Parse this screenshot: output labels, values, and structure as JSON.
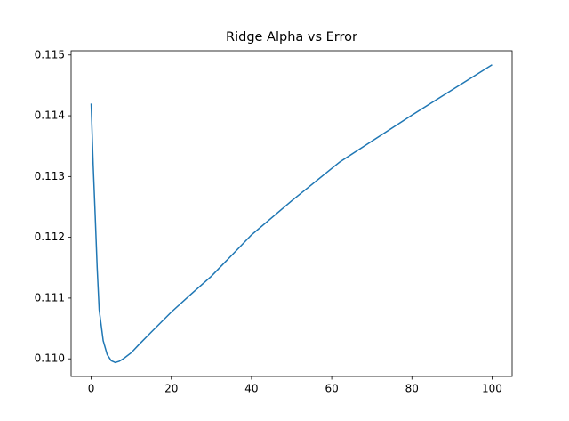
{
  "chart_data": {
    "type": "line",
    "title": "Ridge Alpha vs Error",
    "x": [
      0,
      0.5,
      1,
      1.5,
      2,
      3,
      4,
      5,
      6,
      7,
      8,
      10,
      12,
      15,
      20,
      25,
      30,
      40,
      50,
      62,
      80,
      100
    ],
    "series": [
      {
        "color": "#1f77b4",
        "values": [
          0.1142,
          0.1132,
          0.11237,
          0.1115,
          0.11081,
          0.1103,
          0.11007,
          0.10997,
          0.10994,
          0.10996,
          0.11,
          0.1101,
          0.11024,
          0.11044,
          0.11077,
          0.11107,
          0.11136,
          0.11204,
          0.1126,
          0.11324,
          0.11401,
          0.11484
        ]
      }
    ],
    "xlim": [
      -5,
      105
    ],
    "xticks": [
      0,
      20,
      40,
      60,
      80,
      100
    ],
    "ylim": [
      0.10971,
      0.11507
    ],
    "yticks": [
      {
        "value": 0.11,
        "label": "0.110"
      },
      {
        "value": 0.111,
        "label": "0.111"
      },
      {
        "value": 0.112,
        "label": "0.112"
      },
      {
        "value": 0.113,
        "label": "0.113"
      },
      {
        "value": 0.114,
        "label": "0.114"
      },
      {
        "value": 0.115,
        "label": "0.115"
      }
    ]
  }
}
